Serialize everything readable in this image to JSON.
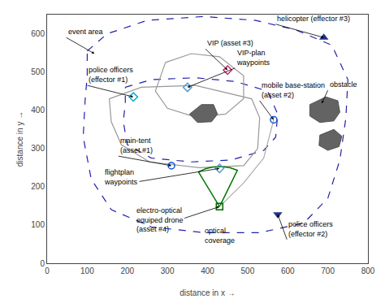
{
  "chart_data": {
    "type": "scatter",
    "xlabel": "distance in x →",
    "ylabel": "distance in y →",
    "xlim": [
      0,
      800
    ],
    "ylim": [
      0,
      650
    ],
    "xticks": [
      0,
      100,
      200,
      300,
      400,
      500,
      600,
      700,
      800
    ],
    "yticks": [
      0,
      100,
      200,
      300,
      400,
      500,
      600
    ],
    "grid": false,
    "series": [
      {
        "type": "line",
        "line_style": "dashed",
        "color": "#2222aa",
        "x": [
          100,
          150,
          250,
          390,
          520,
          620,
          710,
          750,
          745,
          730,
          700,
          640,
          530,
          390,
          260,
          160,
          110,
          90,
          95,
          100,
          100
        ],
        "y": [
          555,
          600,
          635,
          645,
          635,
          610,
          570,
          480,
          380,
          270,
          170,
          105,
          80,
          80,
          95,
          140,
          220,
          330,
          430,
          490,
          555
        ]
      },
      {
        "type": "line",
        "line_style": "dashed",
        "color": "#2222aa",
        "x": [
          195,
          260,
          370,
          470,
          550,
          575,
          570,
          540,
          460,
          360,
          260,
          200,
          190,
          195,
          195
        ],
        "y": [
          460,
          480,
          485,
          475,
          450,
          390,
          330,
          295,
          270,
          265,
          275,
          310,
          370,
          420,
          460
        ]
      },
      {
        "type": "polygon",
        "color": "#999999",
        "x": [
          155,
          235,
          370,
          510,
          530,
          525,
          490,
          380,
          255,
          185,
          160,
          155
        ],
        "y": [
          430,
          460,
          465,
          430,
          380,
          300,
          255,
          250,
          265,
          310,
          370,
          430
        ]
      },
      {
        "type": "polygon",
        "color": "#999999",
        "x": [
          295,
          360,
          430,
          490,
          490,
          445,
          370,
          300,
          270,
          295
        ],
        "y": [
          525,
          548,
          540,
          490,
          430,
          390,
          382,
          405,
          450,
          525
        ]
      },
      {
        "type": "polygon",
        "color": "#404040",
        "fill_color": "#636363",
        "x": [
          355,
          385,
          415,
          425,
          410,
          375,
          355
        ],
        "y": [
          390,
          415,
          415,
          390,
          370,
          368,
          390
        ]
      },
      {
        "type": "polygon",
        "color": "#404040",
        "fill_color": "#636363",
        "x": [
          655,
          695,
          725,
          730,
          715,
          680,
          655,
          655
        ],
        "y": [
          415,
          435,
          425,
          395,
          372,
          368,
          385,
          415
        ]
      },
      {
        "type": "polygon",
        "color": "#404040",
        "fill_color": "#636363",
        "x": [
          680,
          715,
          735,
          728,
          700,
          678,
          680
        ],
        "y": [
          335,
          350,
          332,
          305,
          295,
          308,
          335
        ]
      },
      {
        "type": "sector",
        "color": "#007700",
        "center": [
          430,
          148
        ],
        "radius": 105,
        "angle_start": 65,
        "angle_end": 120
      },
      {
        "type": "line",
        "line_style": "solid",
        "color": "#aaaaaa",
        "x": [
          430,
          490,
          540,
          565
        ],
        "y": [
          148,
          210,
          275,
          375
        ]
      },
      {
        "type": "marker",
        "marker": "circle-open",
        "color": "#1155cc",
        "x": [
          310
        ],
        "y": [
          255
        ]
      },
      {
        "type": "marker",
        "marker": "diamond-open",
        "color": "#cc2266",
        "x": [
          450
        ],
        "y": [
          505
        ]
      },
      {
        "type": "marker",
        "marker": "circle-open",
        "color": "#1155cc",
        "x": [
          565
        ],
        "y": [
          375
        ]
      },
      {
        "type": "marker",
        "marker": "diamond-open",
        "color": "#00aacc",
        "x": [
          215
        ],
        "y": [
          435
        ]
      },
      {
        "type": "marker",
        "marker": "diamond-open",
        "color": "#5599cc",
        "x": [
          350
        ],
        "y": [
          460
        ]
      },
      {
        "type": "marker",
        "marker": "diamond-open",
        "color": "#5599cc",
        "x": [
          430
        ],
        "y": [
          248
        ]
      },
      {
        "type": "marker",
        "marker": "square-open",
        "color": "#006600",
        "x": [
          430
        ],
        "y": [
          148
        ]
      },
      {
        "type": "marker",
        "marker": "triangle-down",
        "color": "#223388",
        "x": [
          575
        ],
        "y": [
          128
        ]
      },
      {
        "type": "marker",
        "marker": "triangle-up",
        "color": "#223388",
        "x": [
          690
        ],
        "y": [
          590
        ]
      }
    ],
    "annotations": [
      {
        "text": "event area",
        "x": 48,
        "y": 590,
        "arrow_x": 118,
        "arrow_y": 548
      },
      {
        "text": "helicopter (effector #3)",
        "x": 570,
        "y": 625,
        "arrow_x": 690,
        "arrow_y": 590
      },
      {
        "text": "VIP (asset #3)",
        "x": 395,
        "y": 560,
        "arrow_x": 450,
        "arrow_y": 505
      },
      {
        "text": "VIP-plan\nwaypoints",
        "x": 468,
        "y": 510,
        "arrow_x": 350,
        "arrow_y": 460
      },
      {
        "text": "police officers\n(effector #1)",
        "x": 100,
        "y": 465,
        "arrow_x": 215,
        "arrow_y": 435
      },
      {
        "text": "mobile base-station\n(asset #2)",
        "x": 530,
        "y": 425,
        "arrow_x": 565,
        "arrow_y": 375
      },
      {
        "text": "obstacle",
        "x": 700,
        "y": 452,
        "arrow_x": 685,
        "arrow_y": 418
      },
      {
        "text": "main-tent\n(asset #1)",
        "x": 178,
        "y": 280,
        "arrow_x": 310,
        "arrow_y": 255
      },
      {
        "text": "flightplan\nwaypoints",
        "x": 138,
        "y": 198,
        "arrow_x": 430,
        "arrow_y": 248
      },
      {
        "text": "electro-optical\nequiped drone\n(asset #4)",
        "x": 218,
        "y": 75,
        "arrow_x": 430,
        "arrow_y": 148
      },
      {
        "text": "optical\ncoverage",
        "x": 388,
        "y": 45,
        "arrow_x": 460,
        "arrow_y": 95
      },
      {
        "text": "police officers\n(effector #2)",
        "x": 598,
        "y": 62,
        "arrow_x": 575,
        "arrow_y": 128
      }
    ]
  }
}
